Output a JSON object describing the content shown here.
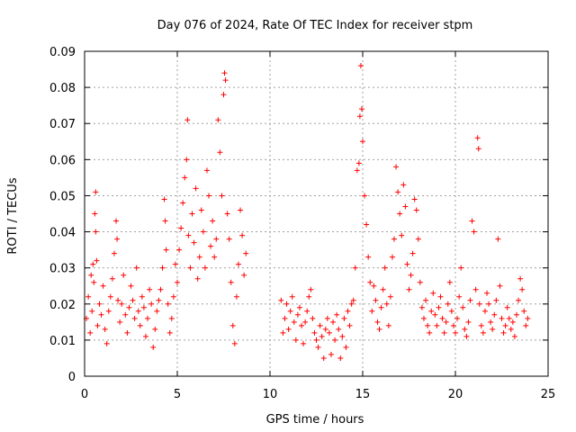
{
  "chart_data": {
    "type": "scatter",
    "title": "Day 076 of 2024, Rate Of TEC Index for receiver stpm",
    "xlabel": "GPS time / hours",
    "ylabel": "ROTI / TECUs",
    "xlim": [
      0,
      25
    ],
    "ylim": [
      0,
      0.09
    ],
    "xticks": [
      0,
      5,
      10,
      15,
      20,
      25
    ],
    "yticks": [
      0,
      0.01,
      0.02,
      0.03,
      0.04,
      0.05,
      0.06,
      0.07,
      0.08,
      0.09
    ],
    "xtick_labels": [
      "0",
      "5",
      "10",
      "15",
      "20",
      "25"
    ],
    "ytick_labels": [
      "0",
      "0.01",
      "0.02",
      "0.03",
      "0.04",
      "0.05",
      "0.06",
      "0.07",
      "0.08",
      "0.09"
    ],
    "grid": true,
    "marker": "plus",
    "color": "#ff0000",
    "series": [
      {
        "name": "ROTI",
        "points": [
          [
            0.1,
            0.016
          ],
          [
            0.2,
            0.022
          ],
          [
            0.3,
            0.012
          ],
          [
            0.35,
            0.028
          ],
          [
            0.4,
            0.018
          ],
          [
            0.45,
            0.031
          ],
          [
            0.5,
            0.026
          ],
          [
            0.55,
            0.045
          ],
          [
            0.6,
            0.051
          ],
          [
            0.6,
            0.04
          ],
          [
            0.65,
            0.032
          ],
          [
            0.7,
            0.014
          ],
          [
            0.8,
            0.02
          ],
          [
            0.9,
            0.017
          ],
          [
            1.0,
            0.025
          ],
          [
            1.1,
            0.013
          ],
          [
            1.2,
            0.009
          ],
          [
            1.3,
            0.018
          ],
          [
            1.4,
            0.022
          ],
          [
            1.5,
            0.027
          ],
          [
            1.6,
            0.034
          ],
          [
            1.7,
            0.043
          ],
          [
            1.75,
            0.038
          ],
          [
            1.8,
            0.021
          ],
          [
            1.9,
            0.015
          ],
          [
            2.0,
            0.02
          ],
          [
            2.1,
            0.028
          ],
          [
            2.2,
            0.017
          ],
          [
            2.3,
            0.012
          ],
          [
            2.4,
            0.019
          ],
          [
            2.5,
            0.025
          ],
          [
            2.6,
            0.021
          ],
          [
            2.7,
            0.016
          ],
          [
            2.8,
            0.03
          ],
          [
            2.9,
            0.018
          ],
          [
            3.0,
            0.014
          ],
          [
            3.1,
            0.022
          ],
          [
            3.2,
            0.019
          ],
          [
            3.3,
            0.011
          ],
          [
            3.4,
            0.016
          ],
          [
            3.5,
            0.024
          ],
          [
            3.6,
            0.02
          ],
          [
            3.7,
            0.008
          ],
          [
            3.8,
            0.013
          ],
          [
            3.9,
            0.018
          ],
          [
            4.0,
            0.021
          ],
          [
            4.1,
            0.024
          ],
          [
            4.2,
            0.03
          ],
          [
            4.3,
            0.049
          ],
          [
            4.35,
            0.043
          ],
          [
            4.4,
            0.035
          ],
          [
            4.5,
            0.02
          ],
          [
            4.6,
            0.012
          ],
          [
            4.7,
            0.016
          ],
          [
            4.8,
            0.022
          ],
          [
            4.9,
            0.031
          ],
          [
            5.0,
            0.026
          ],
          [
            5.1,
            0.035
          ],
          [
            5.2,
            0.041
          ],
          [
            5.3,
            0.048
          ],
          [
            5.4,
            0.055
          ],
          [
            5.5,
            0.06
          ],
          [
            5.55,
            0.071
          ],
          [
            5.6,
            0.039
          ],
          [
            5.7,
            0.03
          ],
          [
            5.8,
            0.045
          ],
          [
            5.9,
            0.037
          ],
          [
            6.0,
            0.052
          ],
          [
            6.1,
            0.027
          ],
          [
            6.2,
            0.033
          ],
          [
            6.3,
            0.046
          ],
          [
            6.4,
            0.04
          ],
          [
            6.5,
            0.03
          ],
          [
            6.6,
            0.057
          ],
          [
            6.7,
            0.05
          ],
          [
            6.8,
            0.036
          ],
          [
            6.9,
            0.043
          ],
          [
            7.0,
            0.033
          ],
          [
            7.1,
            0.038
          ],
          [
            7.2,
            0.071
          ],
          [
            7.3,
            0.062
          ],
          [
            7.4,
            0.05
          ],
          [
            7.5,
            0.078
          ],
          [
            7.55,
            0.084
          ],
          [
            7.6,
            0.082
          ],
          [
            7.7,
            0.045
          ],
          [
            7.8,
            0.038
          ],
          [
            7.9,
            0.026
          ],
          [
            8.0,
            0.014
          ],
          [
            8.1,
            0.009
          ],
          [
            8.2,
            0.022
          ],
          [
            8.3,
            0.031
          ],
          [
            8.4,
            0.046
          ],
          [
            8.5,
            0.039
          ],
          [
            8.6,
            0.028
          ],
          [
            8.7,
            0.034
          ],
          [
            10.6,
            0.021
          ],
          [
            10.7,
            0.012
          ],
          [
            10.8,
            0.016
          ],
          [
            10.9,
            0.02
          ],
          [
            11.0,
            0.013
          ],
          [
            11.1,
            0.018
          ],
          [
            11.2,
            0.022
          ],
          [
            11.3,
            0.015
          ],
          [
            11.4,
            0.01
          ],
          [
            11.5,
            0.017
          ],
          [
            11.6,
            0.019
          ],
          [
            11.7,
            0.014
          ],
          [
            11.8,
            0.009
          ],
          [
            11.9,
            0.015
          ],
          [
            12.0,
            0.018
          ],
          [
            12.1,
            0.022
          ],
          [
            12.2,
            0.024
          ],
          [
            12.3,
            0.016
          ],
          [
            12.4,
            0.012
          ],
          [
            12.5,
            0.01
          ],
          [
            12.6,
            0.008
          ],
          [
            12.7,
            0.014
          ],
          [
            12.8,
            0.011
          ],
          [
            12.9,
            0.005
          ],
          [
            13.0,
            0.013
          ],
          [
            13.1,
            0.016
          ],
          [
            13.2,
            0.012
          ],
          [
            13.3,
            0.006
          ],
          [
            13.4,
            0.015
          ],
          [
            13.5,
            0.01
          ],
          [
            13.6,
            0.017
          ],
          [
            13.7,
            0.013
          ],
          [
            13.8,
            0.005
          ],
          [
            13.9,
            0.011
          ],
          [
            14.0,
            0.016
          ],
          [
            14.1,
            0.008
          ],
          [
            14.2,
            0.018
          ],
          [
            14.3,
            0.014
          ],
          [
            14.4,
            0.02
          ],
          [
            14.5,
            0.021
          ],
          [
            14.6,
            0.03
          ],
          [
            14.7,
            0.057
          ],
          [
            14.8,
            0.059
          ],
          [
            14.85,
            0.072
          ],
          [
            14.9,
            0.086
          ],
          [
            14.95,
            0.074
          ],
          [
            15.0,
            0.065
          ],
          [
            15.1,
            0.05
          ],
          [
            15.2,
            0.042
          ],
          [
            15.3,
            0.033
          ],
          [
            15.4,
            0.026
          ],
          [
            15.5,
            0.018
          ],
          [
            15.6,
            0.025
          ],
          [
            15.7,
            0.021
          ],
          [
            15.8,
            0.015
          ],
          [
            15.9,
            0.013
          ],
          [
            16.0,
            0.019
          ],
          [
            16.1,
            0.024
          ],
          [
            16.2,
            0.03
          ],
          [
            16.3,
            0.02
          ],
          [
            16.4,
            0.014
          ],
          [
            16.5,
            0.022
          ],
          [
            16.6,
            0.033
          ],
          [
            16.7,
            0.038
          ],
          [
            16.8,
            0.058
          ],
          [
            16.9,
            0.051
          ],
          [
            17.0,
            0.045
          ],
          [
            17.1,
            0.039
          ],
          [
            17.2,
            0.053
          ],
          [
            17.3,
            0.047
          ],
          [
            17.4,
            0.031
          ],
          [
            17.5,
            0.024
          ],
          [
            17.6,
            0.028
          ],
          [
            17.7,
            0.034
          ],
          [
            17.8,
            0.049
          ],
          [
            17.9,
            0.046
          ],
          [
            18.0,
            0.038
          ],
          [
            18.1,
            0.026
          ],
          [
            18.2,
            0.019
          ],
          [
            18.3,
            0.016
          ],
          [
            18.4,
            0.021
          ],
          [
            18.5,
            0.014
          ],
          [
            18.6,
            0.012
          ],
          [
            18.7,
            0.018
          ],
          [
            18.8,
            0.023
          ],
          [
            18.9,
            0.017
          ],
          [
            19.0,
            0.014
          ],
          [
            19.1,
            0.019
          ],
          [
            19.2,
            0.022
          ],
          [
            19.3,
            0.016
          ],
          [
            19.4,
            0.012
          ],
          [
            19.5,
            0.015
          ],
          [
            19.6,
            0.02
          ],
          [
            19.7,
            0.026
          ],
          [
            19.8,
            0.018
          ],
          [
            19.9,
            0.014
          ],
          [
            20.0,
            0.012
          ],
          [
            20.1,
            0.016
          ],
          [
            20.2,
            0.022
          ],
          [
            20.3,
            0.03
          ],
          [
            20.4,
            0.019
          ],
          [
            20.5,
            0.013
          ],
          [
            20.6,
            0.011
          ],
          [
            20.7,
            0.015
          ],
          [
            20.8,
            0.021
          ],
          [
            20.9,
            0.043
          ],
          [
            21.0,
            0.04
          ],
          [
            21.1,
            0.024
          ],
          [
            21.2,
            0.066
          ],
          [
            21.25,
            0.063
          ],
          [
            21.3,
            0.02
          ],
          [
            21.4,
            0.014
          ],
          [
            21.5,
            0.012
          ],
          [
            21.6,
            0.018
          ],
          [
            21.7,
            0.023
          ],
          [
            21.8,
            0.02
          ],
          [
            21.9,
            0.015
          ],
          [
            22.0,
            0.013
          ],
          [
            22.1,
            0.017
          ],
          [
            22.2,
            0.021
          ],
          [
            22.3,
            0.038
          ],
          [
            22.4,
            0.025
          ],
          [
            22.5,
            0.016
          ],
          [
            22.6,
            0.012
          ],
          [
            22.7,
            0.014
          ],
          [
            22.8,
            0.019
          ],
          [
            22.9,
            0.016
          ],
          [
            23.0,
            0.013
          ],
          [
            23.1,
            0.015
          ],
          [
            23.2,
            0.011
          ],
          [
            23.3,
            0.017
          ],
          [
            23.4,
            0.021
          ],
          [
            23.5,
            0.027
          ],
          [
            23.6,
            0.024
          ],
          [
            23.7,
            0.018
          ],
          [
            23.8,
            0.014
          ],
          [
            23.9,
            0.016
          ]
        ]
      }
    ]
  }
}
